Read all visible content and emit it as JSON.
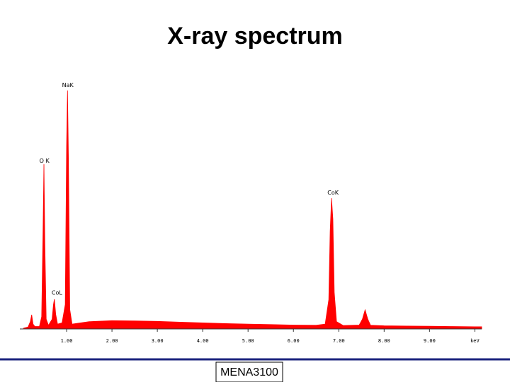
{
  "title": "X-ray spectrum",
  "footer": "MENA3100",
  "chart_data": {
    "type": "area",
    "color": "#ff0000",
    "x": [
      0.05,
      0.15,
      0.2,
      0.23,
      0.26,
      0.3,
      0.4,
      0.45,
      0.48,
      0.5,
      0.52,
      0.55,
      0.6,
      0.68,
      0.71,
      0.73,
      0.76,
      0.8,
      0.9,
      0.97,
      1.0,
      1.02,
      1.04,
      1.07,
      1.12,
      1.2,
      1.5,
      2.0,
      2.5,
      3.0,
      3.5,
      4.0,
      4.5,
      5.0,
      5.5,
      6.0,
      6.5,
      6.7,
      6.78,
      6.81,
      6.84,
      6.87,
      6.9,
      6.95,
      7.1,
      7.45,
      7.52,
      7.58,
      7.64,
      7.7,
      8.0,
      8.5,
      9.0,
      9.5,
      10.0,
      10.15
    ],
    "values": [
      0.3,
      0.8,
      3,
      5.8,
      2,
      1,
      1,
      5,
      40,
      67.5,
      35,
      4,
      1.5,
      4,
      10,
      12.2,
      6,
      2,
      2.5,
      10,
      75,
      97.7,
      70,
      8,
      2,
      2.2,
      3,
      3.4,
      3.3,
      3.1,
      2.8,
      2.5,
      2.2,
      2,
      1.8,
      1.6,
      1.5,
      2,
      12,
      40,
      53.6,
      45,
      15,
      3,
      1.4,
      1.6,
      4,
      7.8,
      4,
      1.5,
      1.3,
      1.2,
      1.1,
      1,
      0.9,
      0.9
    ],
    "xlim": [
      0,
      10.15
    ],
    "ylim": [
      0,
      100
    ],
    "xticks": [
      {
        "value": 1,
        "label": "1.00"
      },
      {
        "value": 2,
        "label": "2.00"
      },
      {
        "value": 3,
        "label": "3.00"
      },
      {
        "value": 4,
        "label": "4.00"
      },
      {
        "value": 5,
        "label": "5.00"
      },
      {
        "value": 6,
        "label": "6.00"
      },
      {
        "value": 7,
        "label": "7.00"
      },
      {
        "value": 8,
        "label": "8.00"
      },
      {
        "value": 9,
        "label": "9.00"
      },
      {
        "value": 10,
        "label": "keV"
      }
    ],
    "annotations": [
      {
        "text": "NaK",
        "x": 0.9,
        "y": 100
      },
      {
        "text": "O K",
        "x": 0.4,
        "y": 69
      },
      {
        "text": "CoK",
        "x": 6.75,
        "y": 56
      },
      {
        "text": "CoL",
        "x": 0.67,
        "y": 15
      }
    ]
  }
}
